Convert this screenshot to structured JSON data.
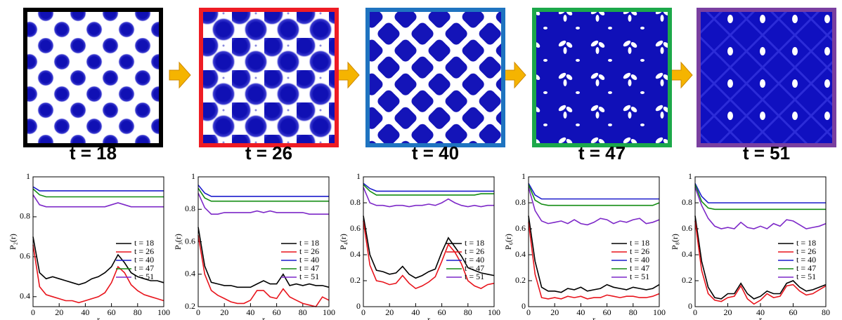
{
  "panels": [
    {
      "label": "t = 18",
      "frame_color": "#000000"
    },
    {
      "label": "t = 26",
      "frame_color": "#ee1c24"
    },
    {
      "label": "t = 40",
      "frame_color": "#1f74c0"
    },
    {
      "label": "t = 47",
      "frame_color": "#1ca84a"
    },
    {
      "label": "t = 51",
      "frame_color": "#7a3fa0"
    }
  ],
  "chart_data": [
    {
      "type": "line",
      "y_label": "P₂(r)",
      "x_label": "r",
      "legend": "right",
      "x": [
        0,
        5,
        10,
        15,
        20,
        25,
        30,
        35,
        40,
        45,
        50,
        55,
        60,
        65,
        70,
        75,
        80,
        85,
        90,
        95,
        100
      ],
      "xlim": [
        0,
        100
      ],
      "xticks": [
        0,
        20,
        40,
        60,
        80,
        100
      ],
      "ylim": [
        0.35,
        1
      ],
      "yticks": [
        0.4,
        0.6,
        0.8,
        1
      ],
      "series": [
        {
          "name": "t = 18",
          "color": "#000000",
          "values": [
            0.7,
            0.52,
            0.49,
            0.5,
            0.49,
            0.48,
            0.47,
            0.46,
            0.47,
            0.49,
            0.5,
            0.52,
            0.55,
            0.61,
            0.57,
            0.52,
            0.5,
            0.49,
            0.48,
            0.48,
            0.47
          ]
        },
        {
          "name": "t = 26",
          "color": "#e8141c",
          "values": [
            0.66,
            0.45,
            0.41,
            0.4,
            0.39,
            0.38,
            0.38,
            0.37,
            0.38,
            0.39,
            0.4,
            0.42,
            0.47,
            0.55,
            0.52,
            0.46,
            0.43,
            0.41,
            0.4,
            0.39,
            0.38
          ]
        },
        {
          "name": "t = 40",
          "color": "#1c1ccc",
          "values": [
            0.95,
            0.93,
            0.93,
            0.93,
            0.93,
            0.93,
            0.93,
            0.93,
            0.93,
            0.93,
            0.93,
            0.93,
            0.93,
            0.93,
            0.93,
            0.93,
            0.93,
            0.93,
            0.93,
            0.93,
            0.93
          ]
        },
        {
          "name": "t = 47",
          "color": "#138c13",
          "values": [
            0.94,
            0.91,
            0.9,
            0.9,
            0.9,
            0.9,
            0.9,
            0.9,
            0.9,
            0.9,
            0.9,
            0.9,
            0.9,
            0.9,
            0.9,
            0.9,
            0.9,
            0.9,
            0.9,
            0.9,
            0.9
          ]
        },
        {
          "name": "t = 51",
          "color": "#7d28c8",
          "values": [
            0.91,
            0.86,
            0.85,
            0.85,
            0.85,
            0.85,
            0.85,
            0.85,
            0.85,
            0.85,
            0.85,
            0.85,
            0.86,
            0.87,
            0.86,
            0.85,
            0.85,
            0.85,
            0.85,
            0.85,
            0.85
          ]
        }
      ]
    },
    {
      "type": "line",
      "y_label": "P₃(r)",
      "x_label": "r",
      "legend": "right",
      "x": [
        0,
        5,
        10,
        15,
        20,
        25,
        30,
        35,
        40,
        45,
        50,
        55,
        60,
        65,
        70,
        75,
        80,
        85,
        90,
        95,
        100
      ],
      "xlim": [
        0,
        100
      ],
      "xticks": [
        0,
        20,
        40,
        60,
        80,
        100
      ],
      "ylim": [
        0.2,
        1
      ],
      "yticks": [
        0.2,
        0.4,
        0.6,
        0.8,
        1
      ],
      "series": [
        {
          "name": "t = 18",
          "color": "#000000",
          "values": [
            0.69,
            0.45,
            0.35,
            0.34,
            0.33,
            0.33,
            0.32,
            0.32,
            0.32,
            0.34,
            0.36,
            0.34,
            0.34,
            0.4,
            0.33,
            0.34,
            0.33,
            0.34,
            0.33,
            0.33,
            0.32
          ]
        },
        {
          "name": "t = 26",
          "color": "#e8141c",
          "values": [
            0.64,
            0.4,
            0.3,
            0.27,
            0.25,
            0.23,
            0.22,
            0.22,
            0.24,
            0.3,
            0.3,
            0.26,
            0.25,
            0.31,
            0.26,
            0.24,
            0.22,
            0.21,
            0.2,
            0.26,
            0.24
          ]
        },
        {
          "name": "t = 40",
          "color": "#1c1ccc",
          "values": [
            0.95,
            0.9,
            0.88,
            0.88,
            0.88,
            0.88,
            0.88,
            0.88,
            0.88,
            0.88,
            0.88,
            0.88,
            0.88,
            0.88,
            0.88,
            0.88,
            0.88,
            0.88,
            0.88,
            0.88,
            0.88
          ]
        },
        {
          "name": "t = 47",
          "color": "#138c13",
          "values": [
            0.93,
            0.87,
            0.85,
            0.85,
            0.85,
            0.85,
            0.85,
            0.85,
            0.85,
            0.85,
            0.85,
            0.85,
            0.85,
            0.85,
            0.85,
            0.85,
            0.85,
            0.85,
            0.85,
            0.85,
            0.85
          ]
        },
        {
          "name": "t = 51",
          "color": "#7d28c8",
          "values": [
            0.9,
            0.81,
            0.77,
            0.77,
            0.78,
            0.78,
            0.78,
            0.78,
            0.78,
            0.79,
            0.78,
            0.79,
            0.78,
            0.78,
            0.78,
            0.78,
            0.78,
            0.77,
            0.77,
            0.77,
            0.77
          ]
        }
      ]
    },
    {
      "type": "line",
      "y_label": "P₄(r)",
      "x_label": "r",
      "legend": "right",
      "x": [
        0,
        5,
        10,
        15,
        20,
        25,
        30,
        35,
        40,
        45,
        50,
        55,
        60,
        65,
        70,
        75,
        80,
        85,
        90,
        95,
        100
      ],
      "xlim": [
        0,
        100
      ],
      "xticks": [
        0,
        20,
        40,
        60,
        80,
        100
      ],
      "ylim": [
        0,
        1
      ],
      "yticks": [
        0,
        0.2,
        0.4,
        0.6,
        0.8,
        1
      ],
      "series": [
        {
          "name": "t = 18",
          "color": "#000000",
          "values": [
            0.7,
            0.4,
            0.28,
            0.27,
            0.25,
            0.26,
            0.31,
            0.25,
            0.22,
            0.24,
            0.27,
            0.29,
            0.42,
            0.53,
            0.46,
            0.39,
            0.3,
            0.28,
            0.26,
            0.25,
            0.24
          ]
        },
        {
          "name": "t = 26",
          "color": "#e8141c",
          "values": [
            0.66,
            0.32,
            0.2,
            0.19,
            0.17,
            0.18,
            0.24,
            0.18,
            0.14,
            0.16,
            0.19,
            0.23,
            0.35,
            0.48,
            0.42,
            0.33,
            0.2,
            0.16,
            0.14,
            0.17,
            0.18
          ]
        },
        {
          "name": "t = 40",
          "color": "#1c1ccc",
          "values": [
            0.95,
            0.91,
            0.89,
            0.89,
            0.89,
            0.89,
            0.89,
            0.89,
            0.89,
            0.89,
            0.89,
            0.89,
            0.89,
            0.89,
            0.89,
            0.89,
            0.89,
            0.89,
            0.89,
            0.89,
            0.89
          ]
        },
        {
          "name": "t = 47",
          "color": "#138c13",
          "values": [
            0.94,
            0.89,
            0.86,
            0.86,
            0.86,
            0.86,
            0.86,
            0.86,
            0.86,
            0.86,
            0.86,
            0.86,
            0.86,
            0.86,
            0.86,
            0.86,
            0.86,
            0.86,
            0.87,
            0.87,
            0.87
          ]
        },
        {
          "name": "t = 51",
          "color": "#7d28c8",
          "values": [
            0.92,
            0.8,
            0.78,
            0.78,
            0.77,
            0.78,
            0.78,
            0.77,
            0.78,
            0.78,
            0.79,
            0.78,
            0.8,
            0.83,
            0.8,
            0.78,
            0.77,
            0.78,
            0.77,
            0.78,
            0.78
          ]
        }
      ]
    },
    {
      "type": "line",
      "y_label": "P₆(r)",
      "x_label": "r",
      "legend": "right",
      "x": [
        0,
        5,
        10,
        15,
        20,
        25,
        30,
        35,
        40,
        45,
        50,
        55,
        60,
        65,
        70,
        75,
        80,
        85,
        90,
        95,
        100
      ],
      "xlim": [
        0,
        100
      ],
      "xticks": [
        0,
        20,
        40,
        60,
        80,
        100
      ],
      "ylim": [
        0,
        1
      ],
      "yticks": [
        0,
        0.2,
        0.4,
        0.6,
        0.8,
        1
      ],
      "series": [
        {
          "name": "t = 18",
          "color": "#000000",
          "values": [
            0.7,
            0.35,
            0.15,
            0.12,
            0.12,
            0.11,
            0.14,
            0.13,
            0.15,
            0.12,
            0.13,
            0.14,
            0.17,
            0.15,
            0.14,
            0.13,
            0.15,
            0.14,
            0.13,
            0.14,
            0.17
          ]
        },
        {
          "name": "t = 26",
          "color": "#e8141c",
          "values": [
            0.65,
            0.25,
            0.07,
            0.06,
            0.07,
            0.06,
            0.08,
            0.07,
            0.08,
            0.06,
            0.07,
            0.07,
            0.09,
            0.08,
            0.07,
            0.08,
            0.08,
            0.07,
            0.07,
            0.08,
            0.1
          ]
        },
        {
          "name": "t = 40",
          "color": "#1c1ccc",
          "values": [
            0.95,
            0.86,
            0.83,
            0.83,
            0.83,
            0.83,
            0.83,
            0.83,
            0.83,
            0.83,
            0.83,
            0.83,
            0.83,
            0.83,
            0.83,
            0.83,
            0.83,
            0.83,
            0.83,
            0.83,
            0.83
          ]
        },
        {
          "name": "t = 47",
          "color": "#138c13",
          "values": [
            0.94,
            0.82,
            0.79,
            0.78,
            0.78,
            0.78,
            0.78,
            0.78,
            0.78,
            0.78,
            0.78,
            0.78,
            0.78,
            0.78,
            0.78,
            0.78,
            0.78,
            0.78,
            0.78,
            0.78,
            0.8
          ]
        },
        {
          "name": "t = 51",
          "color": "#7d28c8",
          "values": [
            0.92,
            0.74,
            0.66,
            0.64,
            0.65,
            0.66,
            0.64,
            0.67,
            0.64,
            0.63,
            0.65,
            0.68,
            0.67,
            0.64,
            0.66,
            0.65,
            0.67,
            0.68,
            0.64,
            0.65,
            0.67
          ]
        }
      ]
    },
    {
      "type": "line",
      "y_label": "P₈(r)",
      "x_label": "r",
      "legend": "right",
      "x": [
        0,
        4,
        8,
        12,
        16,
        20,
        24,
        28,
        32,
        36,
        40,
        44,
        48,
        52,
        56,
        60,
        64,
        68,
        72,
        76,
        80
      ],
      "xlim": [
        0,
        80
      ],
      "xticks": [
        0,
        20,
        40,
        60,
        80
      ],
      "ylim": [
        0,
        1
      ],
      "yticks": [
        0,
        0.2,
        0.4,
        0.6,
        0.8,
        1
      ],
      "series": [
        {
          "name": "t = 18",
          "color": "#000000",
          "values": [
            0.7,
            0.35,
            0.15,
            0.07,
            0.06,
            0.1,
            0.1,
            0.18,
            0.1,
            0.06,
            0.08,
            0.12,
            0.1,
            0.1,
            0.18,
            0.2,
            0.15,
            0.12,
            0.13,
            0.15,
            0.17
          ]
        },
        {
          "name": "t = 26",
          "color": "#e8141c",
          "values": [
            0.66,
            0.28,
            0.1,
            0.05,
            0.04,
            0.07,
            0.08,
            0.16,
            0.06,
            0.02,
            0.05,
            0.1,
            0.07,
            0.08,
            0.16,
            0.17,
            0.12,
            0.09,
            0.1,
            0.13,
            0.16
          ]
        },
        {
          "name": "t = 40",
          "color": "#1c1ccc",
          "values": [
            0.95,
            0.85,
            0.8,
            0.8,
            0.8,
            0.8,
            0.8,
            0.8,
            0.8,
            0.8,
            0.8,
            0.8,
            0.8,
            0.8,
            0.8,
            0.8,
            0.8,
            0.8,
            0.8,
            0.8,
            0.8
          ]
        },
        {
          "name": "t = 47",
          "color": "#138c13",
          "values": [
            0.94,
            0.81,
            0.76,
            0.75,
            0.75,
            0.75,
            0.75,
            0.75,
            0.75,
            0.75,
            0.75,
            0.75,
            0.75,
            0.75,
            0.75,
            0.75,
            0.75,
            0.75,
            0.75,
            0.75,
            0.75
          ]
        },
        {
          "name": "t = 51",
          "color": "#7d28c8",
          "values": [
            0.92,
            0.78,
            0.68,
            0.62,
            0.6,
            0.61,
            0.6,
            0.65,
            0.61,
            0.6,
            0.62,
            0.6,
            0.64,
            0.62,
            0.67,
            0.66,
            0.63,
            0.6,
            0.61,
            0.62,
            0.64
          ]
        }
      ]
    }
  ]
}
